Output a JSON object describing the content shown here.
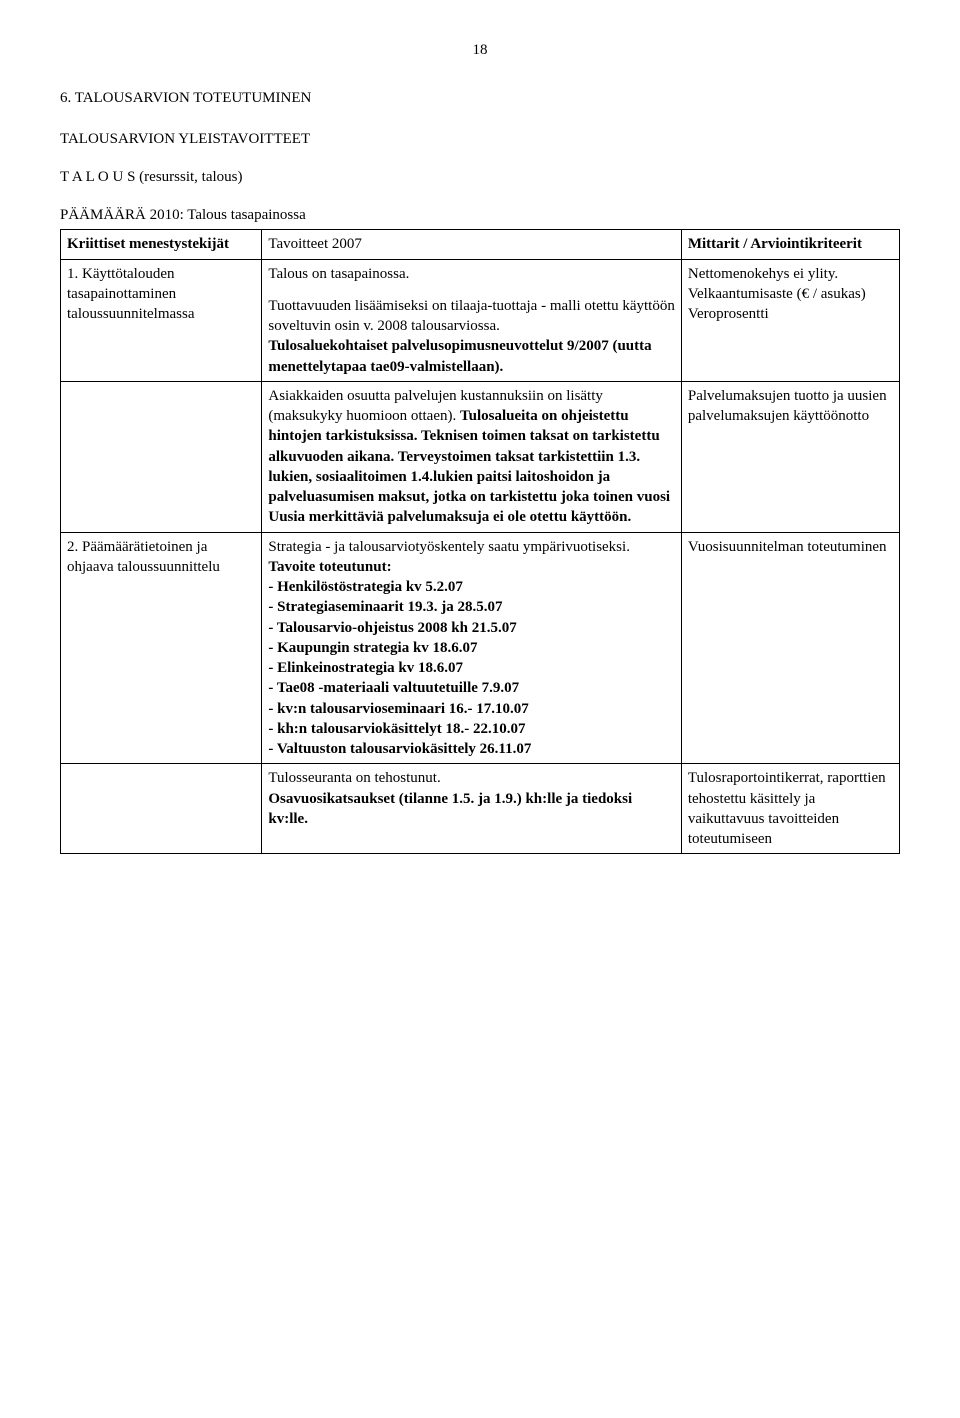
{
  "page_number": "18",
  "heading_main": "6. TALOUSARVION TOTEUTUMINEN",
  "heading_sub": "TALOUSARVION YLEISTAVOITTEET",
  "heading_talous": "T A L O U S (resurssit, talous)",
  "heading_paamaara": "PÄÄMÄÄRÄ 2010: Talous tasapainossa",
  "table": {
    "header": {
      "col1": "Kriittiset menestystekijät",
      "col2": "Tavoitteet 2007",
      "col3": "Mittarit / Arviointikriteerit"
    },
    "rows": [
      {
        "col1": "1. Käyttötalouden tasapainottaminen taloussuunnitelmassa",
        "col2_p1": "Talous on tasapainossa.",
        "col2_p2_a": "Tuottavuuden lisäämiseksi on tilaaja-tuottaja - malli otettu käyttöön soveltuvin osin v. 2008 talousarviossa.",
        "col2_p2_b": "Tulosaluekohtaiset palvelusopimusneuvottelut 9/2007 (uutta menettelytapaa tae09-valmistellaan).",
        "col3": "Nettomenokehys ei ylity. Velkaantumisaste (€ / asukas) Veroprosentti"
      },
      {
        "col1": "",
        "col2_a": "Asiakkaiden osuutta palvelujen kustannuksiin on lisätty (maksukyky huomioon ottaen).",
        "col2_b": "Tulosalueita on ohjeistettu hintojen tarkistuksissa. Teknisen toimen taksat on tarkistettu alkuvuoden aikana. Terveystoimen taksat tarkistettiin 1.3. lukien, sosiaalitoimen 1.4.lukien paitsi laitoshoidon ja palveluasumisen maksut, jotka on tarkistettu joka toinen vuosi Uusia merkittäviä palvelumaksuja ei ole otettu käyttöön.",
        "col3": "Palvelumaksujen tuotto ja uusien palvelumaksujen käyttöönotto"
      },
      {
        "col1": "2. Päämäärätietoinen ja ohjaava taloussuunnittelu",
        "col2_intro": "Strategia - ja talousarviotyöskentely saatu ympärivuotiseksi.",
        "col2_tav": "Tavoite toteutunut:",
        "col2_items": [
          "- Henkilöstöstrategia  kv 5.2.07",
          "- Strategiaseminaarit 19.3. ja 28.5.07",
          "- Talousarvio-ohjeistus 2008 kh 21.5.07",
          "- Kaupungin strategia kv 18.6.07",
          "- Elinkeinostrategia kv 18.6.07",
          "- Tae08 -materiaali valtuutetuille 7.9.07",
          "- kv:n talousarvioseminaari 16.- 17.10.07",
          "- kh:n talousarviokäsittelyt 18.- 22.10.07",
          "- Valtuuston talousarviokäsittely 26.11.07"
        ],
        "col3": "Vuosisuunnitelman toteutuminen"
      },
      {
        "col1": "",
        "col2_a": "Tulosseuranta on tehostunut.",
        "col2_b": "Osavuosikatsaukset  (tilanne 1.5. ja 1.9.) kh:lle ja tiedoksi kv:lle.",
        "col3": "Tulosraportointikerrat, raporttien tehostettu käsittely ja vaikuttavuus tavoitteiden toteutumiseen"
      }
    ]
  }
}
